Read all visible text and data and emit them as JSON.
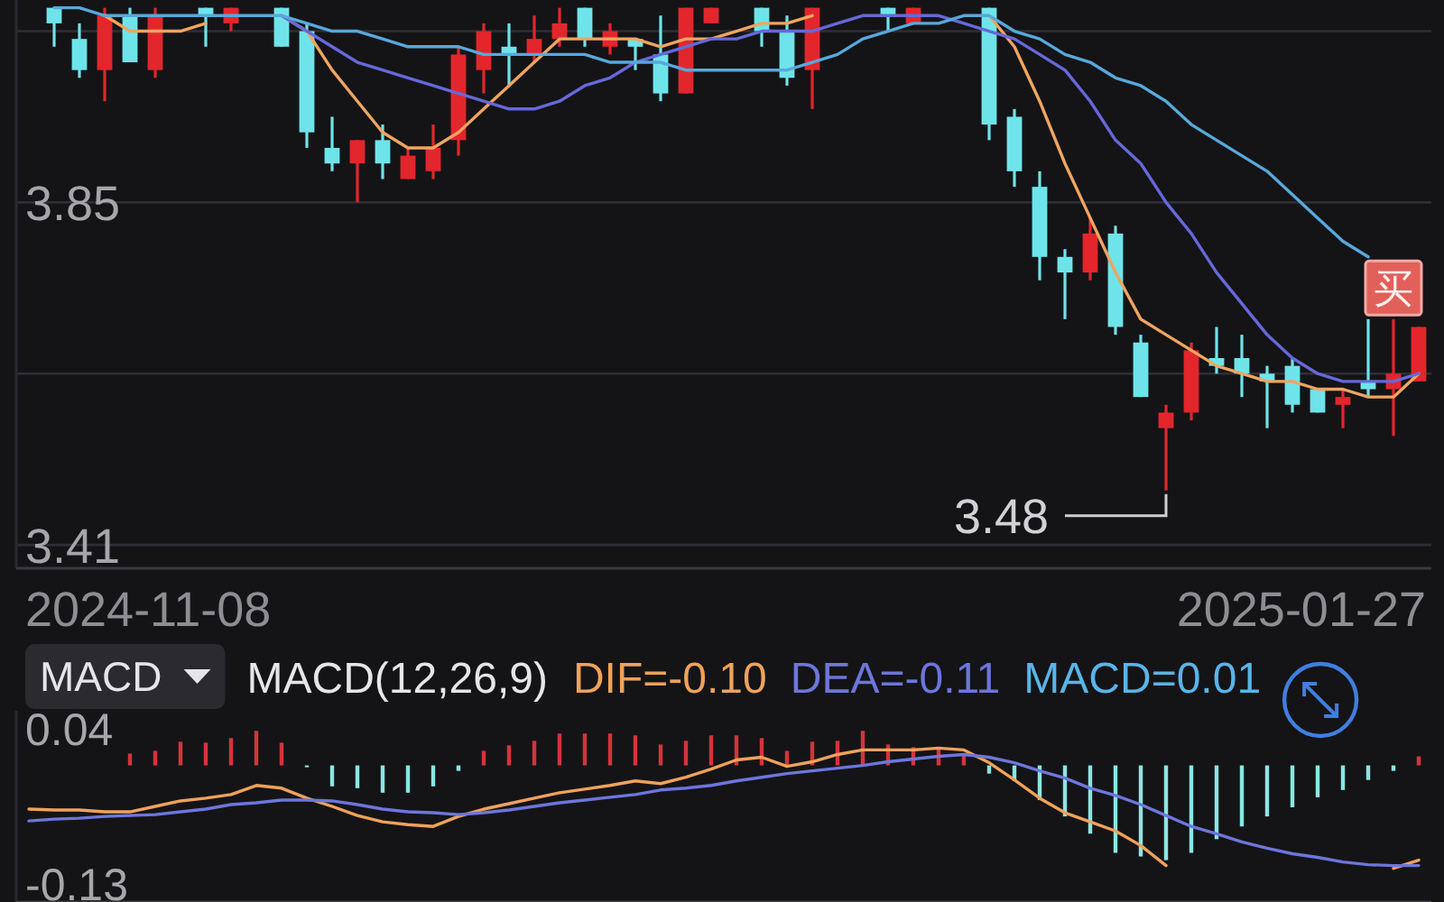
{
  "chart_data": [
    {
      "type": "candlestick",
      "categories": [
        null,
        null,
        null,
        null,
        null,
        null,
        null,
        null,
        null,
        null,
        null,
        null,
        null,
        null,
        null,
        null,
        null,
        null,
        null,
        null,
        null,
        null,
        null,
        null,
        null,
        null,
        null,
        null,
        null,
        null,
        null,
        null,
        null,
        null,
        null,
        null,
        null,
        null,
        null,
        null,
        null,
        null,
        null,
        null,
        null,
        null,
        null,
        null,
        null,
        null,
        null,
        null,
        null,
        null,
        null,
        null
      ],
      "ohlc": [
        null,
        [
          4.1,
          4.1,
          4.05,
          4.08
        ],
        [
          4.06,
          4.08,
          4.01,
          4.02
        ],
        [
          4.02,
          4.1,
          3.98,
          4.09
        ],
        [
          4.09,
          4.1,
          4.03,
          4.03
        ],
        [
          4.02,
          4.1,
          4.01,
          4.09
        ],
        null,
        [
          4.1,
          4.1,
          4.05,
          4.09
        ],
        [
          4.08,
          4.1,
          4.07,
          4.1
        ],
        null,
        [
          4.1,
          4.1,
          4.05,
          4.05
        ],
        [
          4.07,
          4.08,
          3.92,
          3.94
        ],
        [
          3.92,
          3.96,
          3.89,
          3.9
        ],
        [
          3.9,
          3.93,
          3.85,
          3.93
        ],
        [
          3.93,
          3.95,
          3.88,
          3.9
        ],
        [
          3.88,
          3.92,
          3.88,
          3.91
        ],
        [
          3.89,
          3.95,
          3.88,
          3.92
        ],
        [
          3.93,
          4.05,
          3.91,
          4.04
        ],
        [
          4.02,
          4.08,
          3.99,
          4.07
        ],
        [
          4.05,
          4.08,
          4.0,
          4.04
        ],
        [
          4.04,
          4.09,
          4.03,
          4.06
        ],
        [
          4.06,
          4.1,
          4.05,
          4.08
        ],
        [
          4.1,
          4.1,
          4.05,
          4.06
        ],
        [
          4.05,
          4.08,
          4.04,
          4.07
        ],
        [
          4.06,
          4.06,
          4.02,
          4.05
        ],
        [
          4.04,
          4.09,
          3.98,
          3.99
        ],
        [
          3.99,
          4.1,
          3.99,
          4.1
        ],
        [
          4.08,
          4.1,
          4.08,
          4.1
        ],
        null,
        [
          4.1,
          4.1,
          4.05,
          4.07
        ],
        [
          4.07,
          4.09,
          4.0,
          4.01
        ],
        [
          4.02,
          4.1,
          3.97,
          4.1
        ],
        null,
        null,
        [
          4.1,
          4.1,
          4.07,
          4.09
        ],
        [
          4.08,
          4.1,
          4.08,
          4.1
        ],
        null,
        null,
        [
          4.1,
          4.1,
          3.93,
          3.95
        ],
        [
          3.96,
          3.97,
          3.87,
          3.89
        ],
        [
          3.87,
          3.89,
          3.75,
          3.78
        ],
        [
          3.78,
          3.79,
          3.7,
          3.76
        ],
        [
          3.76,
          3.83,
          3.75,
          3.81
        ],
        [
          3.81,
          3.82,
          3.68,
          3.69
        ],
        [
          3.67,
          3.68,
          3.6,
          3.6
        ],
        [
          3.56,
          3.59,
          3.48,
          3.58
        ],
        [
          3.58,
          3.67,
          3.57,
          3.66
        ],
        [
          3.65,
          3.69,
          3.63,
          3.64
        ],
        [
          3.65,
          3.68,
          3.6,
          3.63
        ],
        [
          3.63,
          3.64,
          3.56,
          3.62
        ],
        [
          3.64,
          3.65,
          3.58,
          3.59
        ],
        [
          3.61,
          3.61,
          3.58,
          3.58
        ],
        [
          3.59,
          3.61,
          3.56,
          3.6
        ],
        [
          3.62,
          3.7,
          3.6,
          3.61
        ],
        [
          3.61,
          3.7,
          3.55,
          3.63
        ],
        [
          3.62,
          3.69,
          3.62,
          3.69
        ]
      ],
      "colors": [
        null,
        "#6ee4ea",
        "#6ee4ea",
        "#e2262c",
        "#6ee4ea",
        "#e2262c",
        null,
        "#6ee4ea",
        "#e2262c",
        null,
        "#6ee4ea",
        "#6ee4ea",
        "#6ee4ea",
        "#e2262c",
        "#6ee4ea",
        "#e2262c",
        "#e2262c",
        "#e2262c",
        "#e2262c",
        "#6ee4ea",
        "#e2262c",
        "#e2262c",
        "#6ee4ea",
        "#e2262c",
        "#6ee4ea",
        "#6ee4ea",
        "#e2262c",
        "#e2262c",
        null,
        "#6ee4ea",
        "#6ee4ea",
        "#e2262c",
        null,
        null,
        "#6ee4ea",
        "#e2262c",
        null,
        null,
        "#6ee4ea",
        "#6ee4ea",
        "#6ee4ea",
        "#6ee4ea",
        "#e2262c",
        "#6ee4ea",
        "#6ee4ea",
        "#e2262c",
        "#e2262c",
        "#6ee4ea",
        "#6ee4ea",
        "#6ee4ea",
        "#6ee4ea",
        "#6ee4ea",
        "#e2262c",
        "#6ee4ea",
        "#e2262c",
        "#e2262c"
      ],
      "series": [
        {
          "type": "line",
          "color": "#f0a560",
          "values": [
            null,
            null,
            null,
            4.09,
            4.07,
            4.07,
            4.07,
            4.08,
            null,
            null,
            4.09,
            4.07,
            4.02,
            3.98,
            3.94,
            3.92,
            3.92,
            3.94,
            3.97,
            4.0,
            4.03,
            4.06,
            4.06,
            4.06,
            4.06,
            4.05,
            4.06,
            4.06,
            4.07,
            4.08,
            4.08,
            4.09,
            null,
            null,
            null,
            null,
            null,
            null,
            4.09,
            4.05,
            3.98,
            3.9,
            3.83,
            3.76,
            3.7,
            3.68,
            3.66,
            3.64,
            3.63,
            3.62,
            3.62,
            3.61,
            3.61,
            3.6,
            3.6,
            3.63
          ]
        },
        {
          "type": "line",
          "color": "#6668da",
          "values": [
            null,
            null,
            null,
            null,
            null,
            null,
            null,
            null,
            null,
            null,
            4.09,
            4.07,
            4.05,
            4.03,
            4.02,
            4.01,
            4.0,
            3.99,
            3.98,
            3.97,
            3.97,
            3.98,
            4.0,
            4.01,
            4.03,
            4.04,
            4.05,
            4.06,
            4.06,
            4.07,
            4.07,
            4.07,
            4.08,
            4.09,
            4.09,
            4.09,
            4.09,
            4.08,
            4.07,
            4.06,
            4.04,
            4.02,
            3.98,
            3.93,
            3.9,
            3.85,
            3.81,
            3.76,
            3.72,
            3.68,
            3.65,
            3.63,
            3.62,
            3.62,
            3.62,
            3.63
          ]
        },
        {
          "type": "line",
          "color": "#58a8dc",
          "values": [
            null,
            4.1,
            4.1,
            4.09,
            4.09,
            4.09,
            4.09,
            4.09,
            4.09,
            4.09,
            4.09,
            4.08,
            4.07,
            4.07,
            4.06,
            4.05,
            4.05,
            4.05,
            4.04,
            4.04,
            4.04,
            4.04,
            4.04,
            4.03,
            4.03,
            4.03,
            4.02,
            4.02,
            4.02,
            4.02,
            4.02,
            4.03,
            4.04,
            4.06,
            4.07,
            4.08,
            4.08,
            4.09,
            4.09,
            4.07,
            4.06,
            4.04,
            4.03,
            4.01,
            4.0,
            3.98,
            3.95,
            3.93,
            3.91,
            3.89,
            3.86,
            3.83,
            3.8,
            3.78,
            null,
            null
          ]
        },
        {
          "type": "scatter",
          "marker": "square",
          "color": "#e2605a",
          "values": [
            null,
            null,
            null,
            null,
            null,
            null,
            null,
            null,
            null,
            null,
            null,
            null,
            null,
            null,
            null,
            null,
            null,
            null,
            null,
            null,
            null,
            null,
            null,
            null,
            null,
            null,
            null,
            null,
            null,
            null,
            null,
            null,
            null,
            null,
            null,
            null,
            null,
            null,
            null,
            null,
            null,
            null,
            null,
            null,
            null,
            null,
            null,
            null,
            null,
            null,
            null,
            null,
            null,
            null,
            3.74,
            null
          ],
          "value_labels": [
            null,
            null,
            null,
            null,
            null,
            null,
            null,
            null,
            null,
            null,
            null,
            null,
            null,
            null,
            null,
            null,
            null,
            null,
            null,
            null,
            null,
            null,
            null,
            null,
            null,
            null,
            null,
            null,
            null,
            null,
            null,
            null,
            null,
            null,
            null,
            null,
            null,
            null,
            null,
            null,
            null,
            null,
            null,
            null,
            null,
            null,
            null,
            null,
            null,
            null,
            null,
            null,
            null,
            null,
            "买",
            null
          ]
        }
      ],
      "ylim": [
        3.38,
        4.11
      ],
      "yticks": [
        3.41,
        {
          "value": 3.63,
          "label": null
        },
        3.85,
        {
          "value": 4.07,
          "label": null
        }
      ],
      "grid": "y",
      "annotations": [
        "2024-11-08",
        "2025-01-27",
        "3.48"
      ]
    },
    {
      "type": "bar",
      "title": "MACD(12,26,9)",
      "categories": [
        null,
        null,
        null,
        null,
        null,
        null,
        null,
        null,
        null,
        null,
        null,
        null,
        null,
        null,
        null,
        null,
        null,
        null,
        null,
        null,
        null,
        null,
        null,
        null,
        null,
        null,
        null,
        null,
        null,
        null,
        null,
        null,
        null,
        null,
        null,
        null,
        null,
        null,
        null,
        null,
        null,
        null,
        null,
        null,
        null,
        null,
        null,
        null,
        null,
        null,
        null,
        null,
        null,
        null,
        null,
        null
      ],
      "series": [
        {
          "name": "DIF=-0.10",
          "type": "line",
          "color": "#f0a25a",
          "values": [
            -0.048,
            -0.049,
            -0.049,
            -0.051,
            -0.051,
            -0.045,
            -0.039,
            -0.036,
            -0.032,
            -0.022,
            -0.025,
            -0.036,
            -0.045,
            -0.055,
            -0.062,
            -0.065,
            -0.067,
            -0.056,
            -0.048,
            -0.042,
            -0.036,
            -0.03,
            -0.026,
            -0.022,
            -0.017,
            -0.02,
            -0.013,
            -0.004,
            0.006,
            0.009,
            -0.001,
            0.004,
            0.012,
            0.017,
            0.017,
            0.017,
            0.019,
            0.017,
            0.003,
            -0.016,
            -0.036,
            -0.052,
            -0.062,
            -0.072,
            -0.088,
            -0.11,
            null,
            null,
            null,
            null,
            null,
            null,
            null,
            null,
            -0.113,
            -0.104
          ]
        },
        {
          "name": "DEA=-0.11",
          "type": "line",
          "color": "#6d76dc",
          "values": [
            -0.061,
            -0.059,
            -0.058,
            -0.056,
            -0.055,
            -0.054,
            -0.051,
            -0.048,
            -0.043,
            -0.041,
            -0.038,
            -0.038,
            -0.039,
            -0.043,
            -0.048,
            -0.051,
            -0.052,
            -0.054,
            -0.052,
            -0.049,
            -0.045,
            -0.041,
            -0.038,
            -0.035,
            -0.032,
            -0.027,
            -0.025,
            -0.022,
            -0.017,
            -0.013,
            -0.009,
            -0.006,
            -0.003,
            0,
            0.004,
            0.007,
            0.01,
            0.012,
            0.009,
            0.003,
            -0.006,
            -0.014,
            -0.025,
            -0.033,
            -0.043,
            -0.055,
            -0.067,
            -0.075,
            -0.084,
            -0.091,
            -0.097,
            -0.101,
            -0.106,
            -0.109,
            -0.11,
            -0.11
          ]
        },
        {
          "name": "MACD=0.01",
          "type": "bar",
          "color": "#5ab4e8",
          "colors": [
            null,
            null,
            null,
            null,
            "#d6333a",
            "#d6333a",
            "#d6333a",
            "#d6333a",
            "#d6333a",
            "#d6333a",
            "#d6333a",
            "#8ae6e2",
            "#8ae6e2",
            "#8ae6e2",
            "#8ae6e2",
            "#8ae6e2",
            "#8ae6e2",
            "#8ae6e2",
            "#d6333a",
            "#d6333a",
            "#d6333a",
            "#d6333a",
            "#d6333a",
            "#d6333a",
            "#d6333a",
            "#d6333a",
            "#d6333a",
            "#d6333a",
            "#d6333a",
            "#d6333a",
            "#d6333a",
            "#d6333a",
            "#d6333a",
            "#d6333a",
            "#d6333a",
            "#d6333a",
            "#d6333a",
            "#d6333a",
            "#8ae6e2",
            "#8ae6e2",
            "#8ae6e2",
            "#8ae6e2",
            "#8ae6e2",
            "#8ae6e2",
            "#8ae6e2",
            "#8ae6e2",
            "#8ae6e2",
            "#8ae6e2",
            "#8ae6e2",
            "#8ae6e2",
            "#8ae6e2",
            "#8ae6e2",
            "#8ae6e2",
            "#8ae6e2",
            "#8ae6e2",
            "#d6333a"
          ],
          "values": [
            null,
            null,
            null,
            null,
            0.013,
            0.016,
            0.026,
            0.025,
            0.03,
            0.038,
            0.025,
            -0.002,
            -0.023,
            -0.025,
            -0.03,
            -0.03,
            -0.023,
            -0.006,
            0.016,
            0.022,
            0.027,
            0.035,
            0.035,
            0.035,
            0.033,
            0.023,
            0.027,
            0.033,
            0.033,
            0.03,
            0.016,
            0.026,
            0.027,
            0.038,
            0.023,
            0.02,
            0.019,
            0.013,
            -0.009,
            -0.017,
            -0.038,
            -0.056,
            -0.075,
            -0.096,
            -0.1,
            -0.104,
            -0.096,
            -0.081,
            -0.067,
            -0.056,
            -0.046,
            -0.035,
            -0.027,
            -0.016,
            -0.006,
            0.01
          ]
        }
      ],
      "ylim": [
        -0.15,
        0.06
      ],
      "yticks": [
        -0.13,
        0.04
      ],
      "legend": "top",
      "annotations": [
        "MACD"
      ]
    }
  ]
}
